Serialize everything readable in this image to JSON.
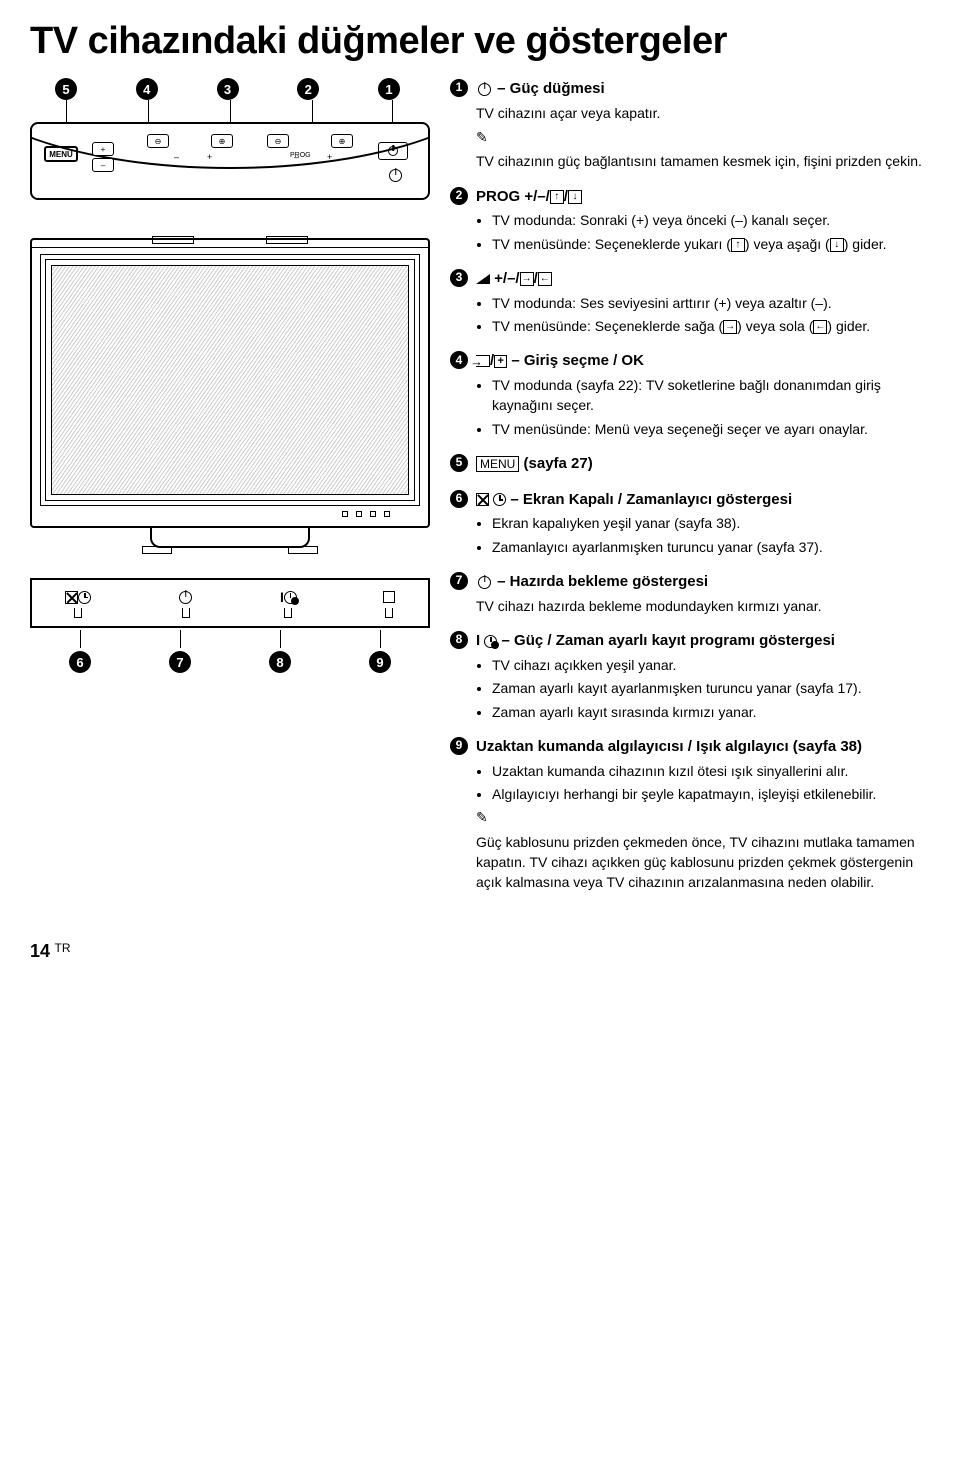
{
  "title": "TV cihazındaki düğmeler ve göstergeler",
  "footer": {
    "page": "14",
    "region": "TR"
  },
  "diagram": {
    "menu_label": "MENU",
    "prog_label": "PROG",
    "callout_top": [
      "5",
      "4",
      "3",
      "2",
      "1"
    ],
    "callout_bottom": [
      "6",
      "7",
      "8",
      "9"
    ]
  },
  "items": [
    {
      "num": "1",
      "head_html": "<span class='inline-pwr'></span> – Güç düğmesi",
      "body_html": "<p>TV cihazını açar veya kapatır.</p><p class='note-icon'></p><p>TV cihazının güç bağlantısını tamamen kesmek için, fişini prizden çekin.</p>"
    },
    {
      "num": "2",
      "head_html": "PROG +/–/<span class='arrow-box'>↑</span>/<span class='arrow-box'>↓</span>",
      "body_html": "<ul><li>TV modunda: Sonraki (+) veya önceki (–) kanalı seçer.</li><li>TV menüsünde: Seçeneklerde yukarı (<span class='arrow-box'>↑</span>) veya aşağı (<span class='arrow-box'>↓</span>) gider.</li></ul>"
    },
    {
      "num": "3",
      "head_html": "<span class='vol-icon'></span> +/–/<span class='arrow-box'>→</span>/<span class='arrow-box'>←</span>",
      "body_html": "<ul><li>TV modunda: Ses seviyesini arttırır (+) veya azaltır (–).</li><li>TV menüsünde: Seçeneklerde sağa (<span class='arrow-box'>→</span>) veya sola (<span class='arrow-box'>←</span>) gider.</li></ul>"
    },
    {
      "num": "4",
      "head_html": "<span class='input-icon'></span>/<span class='plus-box'>+</span> – Giriş seçme / OK",
      "body_html": "<ul><li>TV modunda (sayfa 22): TV soketlerine bağlı donanımdan giriş kaynağını seçer.</li><li>TV menüsünde: Menü veya seçeneği seçer ve ayarı onaylar.</li></ul>"
    },
    {
      "num": "5",
      "head_html": "<span class='boxed'>MENU</span> (sayfa 27)",
      "body_html": ""
    },
    {
      "num": "6",
      "head_html": "<span class='cross-box'></span> <span class='clock-ic'></span> – Ekran Kapalı / Zamanlayıcı göstergesi",
      "body_html": "<ul><li>Ekran kapalıyken yeşil yanar (sayfa 38).</li><li>Zamanlayıcı ayarlanmışken turuncu yanar (sayfa 37).</li></ul>"
    },
    {
      "num": "7",
      "head_html": "<span class='inline-pwr'></span> – Hazırda bekleme göstergesi",
      "body_html": "<p>TV cihazı hazırda bekleme modundayken kırmızı yanar.</p>"
    },
    {
      "num": "8",
      "head_html": "<span class='sym-bold'>I</span> <span class='clock-ic rec-dot'></span> – Güç / Zaman ayarlı kayıt programı göstergesi",
      "body_html": "<ul><li>TV cihazı açıkken yeşil yanar.</li><li>Zaman ayarlı kayıt ayarlanmışken turuncu yanar (sayfa 17).</li><li>Zaman ayarlı kayıt sırasında kırmızı yanar.</li></ul>"
    },
    {
      "num": "9",
      "head_html": "Uzaktan kumanda algılayıcısı / Işık algılayıcı (sayfa 38)",
      "body_html": "<ul><li>Uzaktan kumanda cihazının kızıl ötesi ışık sinyallerini alır.</li><li>Algılayıcıyı herhangi bir şeyle kapatmayın, işleyişi etkilenebilir.</li></ul><p class='note-icon'></p><p>Güç kablosunu prizden çekmeden önce, TV cihazını mutlaka tamamen kapatın. TV cihazı açıkken güç kablosunu prizden çekmek göstergenin açık kalmasına veya TV cihazının arızalanmasına neden olabilir.</p>"
    }
  ]
}
